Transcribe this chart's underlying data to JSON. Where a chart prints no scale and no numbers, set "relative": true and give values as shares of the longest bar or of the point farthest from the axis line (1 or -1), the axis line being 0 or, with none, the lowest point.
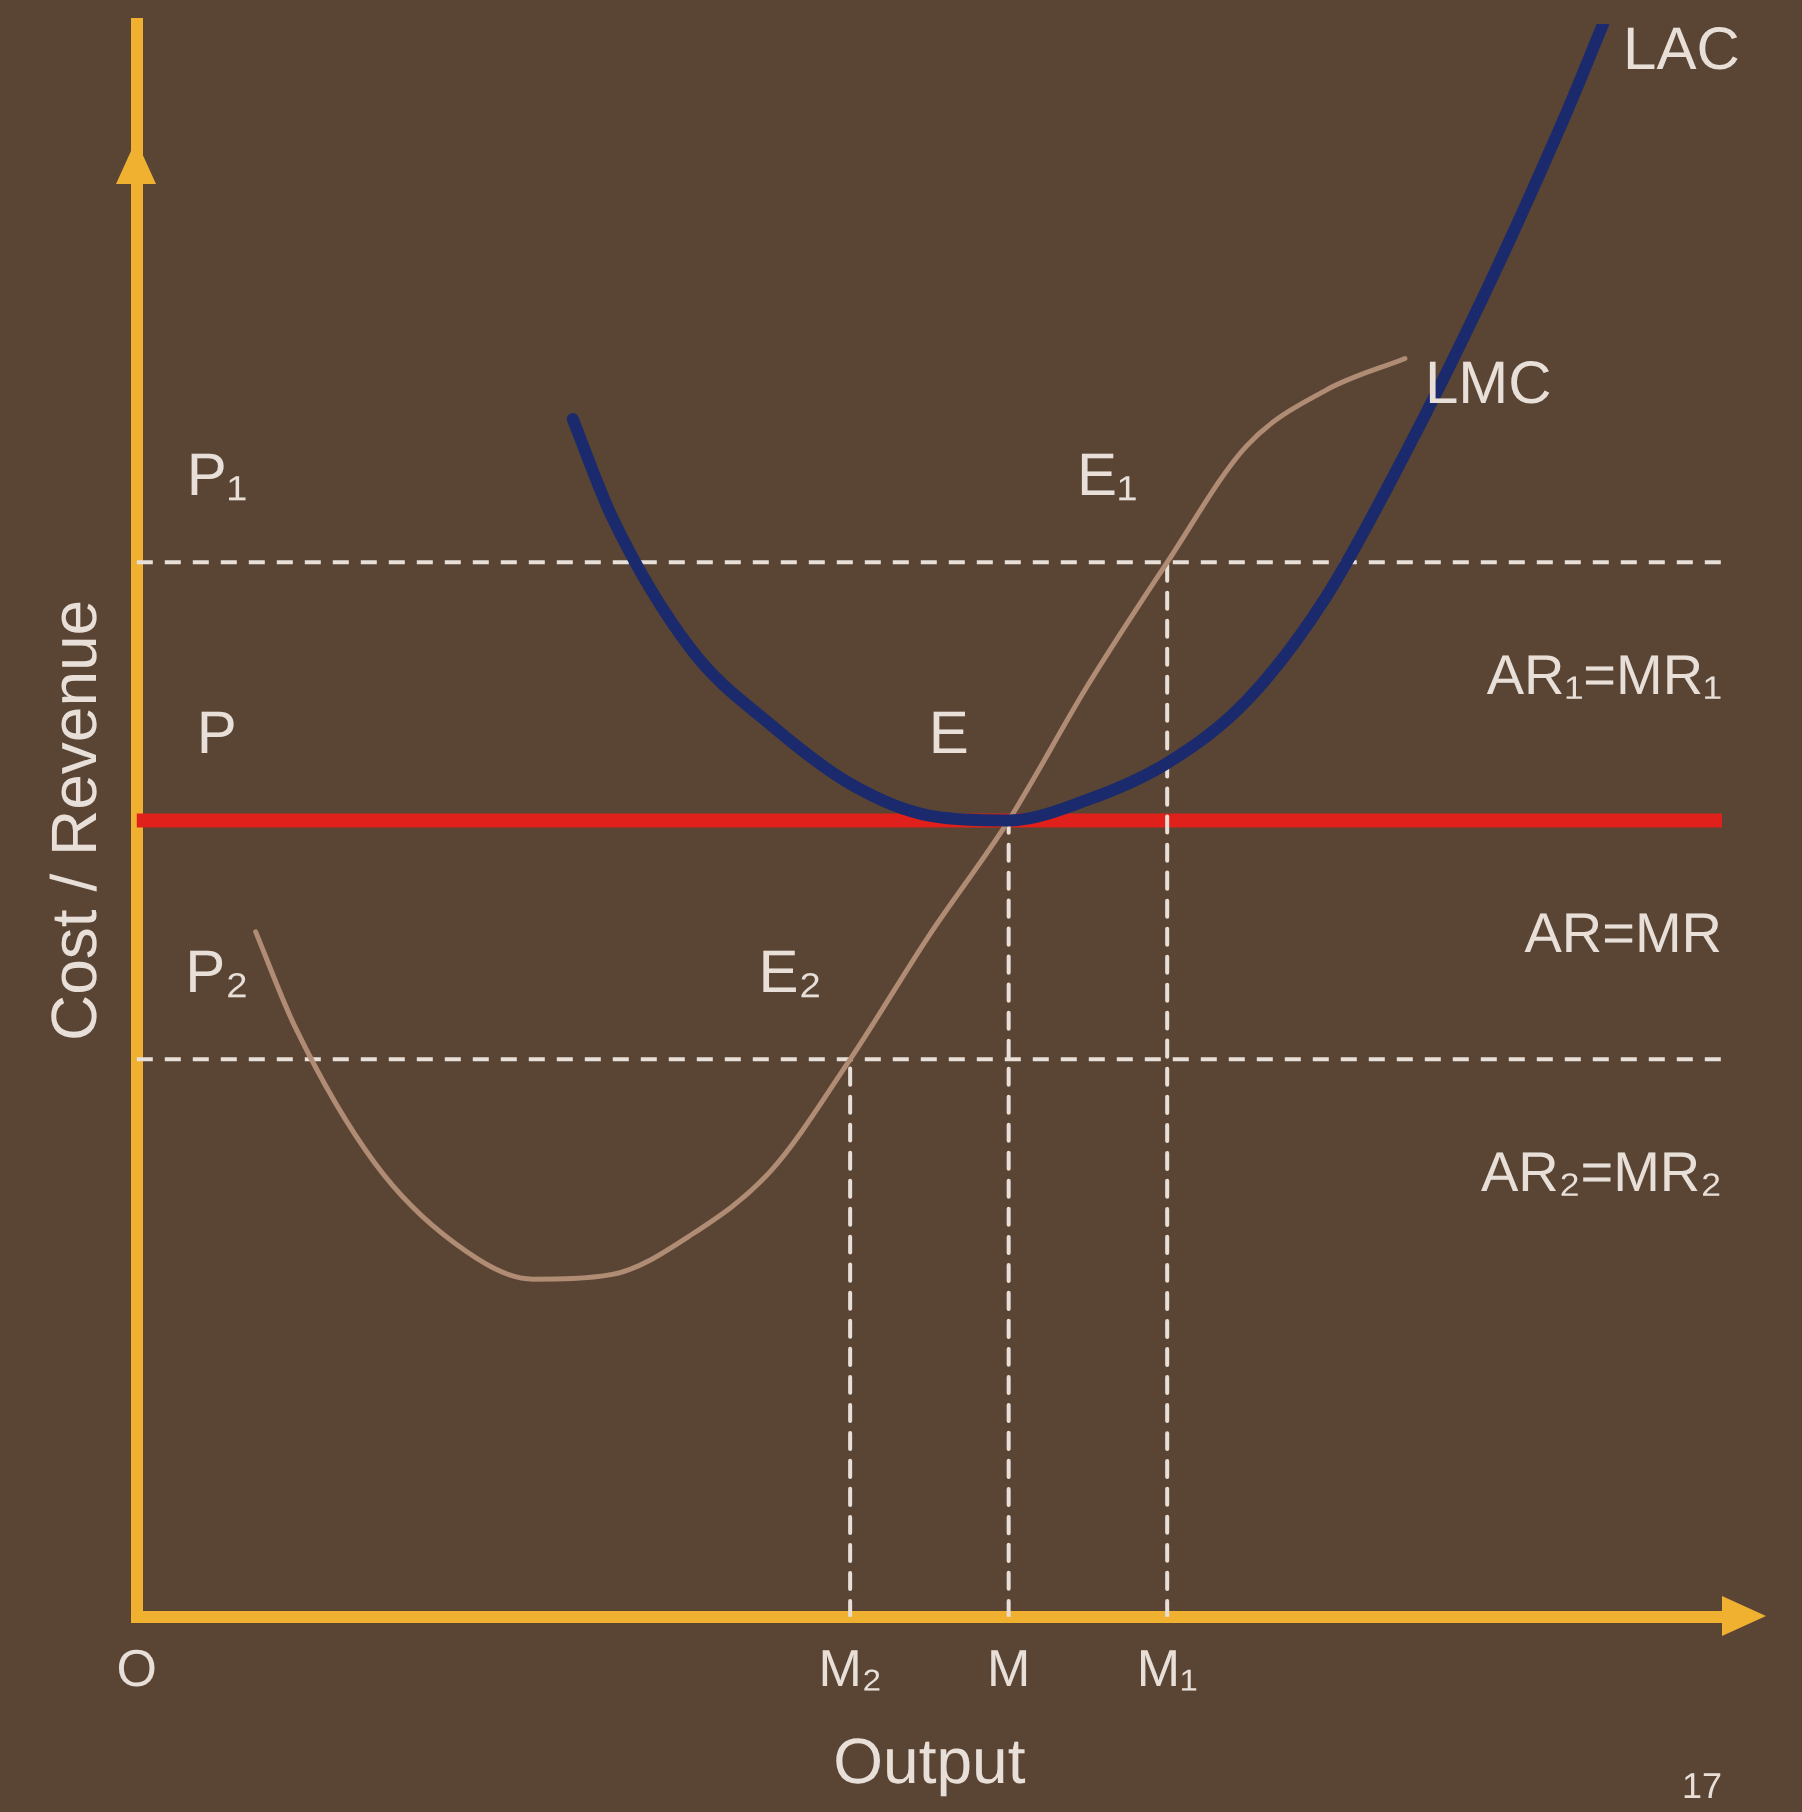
{
  "chart_data": {
    "type": "line",
    "xlabel": "Output",
    "ylabel": "Cost / Revenue",
    "relative": true,
    "marker": "none",
    "categories": [
      "O",
      null,
      null,
      null,
      null,
      null,
      null,
      null,
      null,
      null,
      null,
      null,
      null,
      null,
      null,
      null,
      null,
      null,
      "M₂",
      null,
      null,
      null,
      "M",
      null,
      null,
      null,
      "M₁",
      null,
      null,
      null,
      null,
      null,
      null,
      null,
      null,
      null,
      null,
      null,
      null,
      null,
      null
    ],
    "series": [
      {
        "name": "LAC",
        "color": "#1a2a6c",
        "line_style": "solid",
        "values": [
          null,
          null,
          null,
          null,
          null,
          null,
          null,
          null,
          null,
          null,
          null,
          0.752,
          0.69,
          null,
          0.607,
          null,
          0.56,
          null,
          0.523,
          null,
          0.503,
          null,
          0.5,
          null,
          0.513,
          null,
          0.536,
          null,
          0.575,
          null,
          0.64,
          null,
          0.73,
          null,
          0.83,
          null,
          0.94,
          1,
          null,
          null,
          null
        ]
      },
      {
        "name": "LMC",
        "color": "#b08c74",
        "line_style": "solid",
        "values": [
          null,
          null,
          null,
          0.43,
          0.37,
          null,
          0.285,
          null,
          0.235,
          null,
          0.212,
          null,
          0.215,
          null,
          0.24,
          null,
          0.28,
          null,
          0.35,
          null,
          0.428,
          null,
          0.5,
          null,
          0.585,
          null,
          0.662,
          null,
          0.735,
          null,
          0.77,
          null,
          0.79,
          null,
          null,
          null,
          null,
          null,
          null,
          null,
          null
        ]
      },
      {
        "color": "#e8e0d8",
        "line_style": "dashed",
        "x": [
          "M₂",
          "M₂"
        ],
        "values": [
          0,
          0.35
        ]
      },
      {
        "color": "#e8e0d8",
        "line_style": "dashed",
        "x": [
          "M",
          "M"
        ],
        "values": [
          0,
          0.5
        ]
      },
      {
        "color": "#e8e0d8",
        "line_style": "dashed",
        "x": [
          "M₁",
          "M₁"
        ],
        "values": [
          0,
          0.662
        ]
      }
    ],
    "ref_lines": [
      {
        "axis": "y",
        "value": 0.662,
        "label": "AR₁=MR₁",
        "color": "#e8e0d8",
        "line_style": "dashed"
      },
      {
        "axis": "y",
        "value": 0.5,
        "label": "AR=MR",
        "color": "#e0201a",
        "line_style": "solid"
      },
      {
        "axis": "y",
        "value": 0.35,
        "label": "AR₂=MR₂",
        "color": "#e8e0d8",
        "line_style": "dashed"
      }
    ],
    "annotations": [
      {
        "text": "P₁",
        "x": "O",
        "y": 0.662
      },
      {
        "text": "P",
        "x": "O",
        "y": 0.5
      },
      {
        "text": "P₂",
        "x": "O",
        "y": 0.35
      },
      {
        "text": "E₁",
        "x": "M₁",
        "y": 0.662
      },
      {
        "text": "E",
        "x": "M",
        "y": 0.5
      },
      {
        "text": "E₂",
        "x": "M₂",
        "y": 0.35
      },
      "17"
    ]
  }
}
